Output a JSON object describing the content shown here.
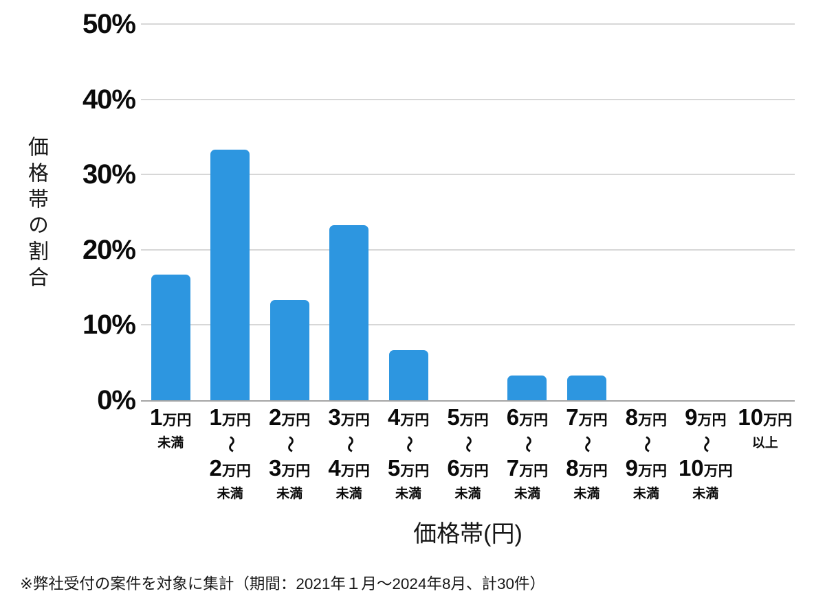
{
  "chart_data": {
    "type": "bar",
    "title": "",
    "xlabel": "価格帯(円)",
    "ylabel": "価格帯の割合",
    "ylim": [
      0,
      50
    ],
    "grid": true,
    "bar_color": "#2D96E0",
    "y_ticks": [
      "50%",
      "40%",
      "30%",
      "20%",
      "10%",
      "0%"
    ],
    "categories": [
      {
        "label": "1万円未満",
        "num1": "1",
        "unit1": "万円",
        "suffix": "未満",
        "value": 16.7
      },
      {
        "label": "1万円〜2万円未満",
        "num1": "1",
        "unit1": "万円",
        "tilde": "〜",
        "num2": "2",
        "unit2": "万円",
        "suffix": "未満",
        "value": 33.3
      },
      {
        "label": "2万円〜3万円未満",
        "num1": "2",
        "unit1": "万円",
        "tilde": "〜",
        "num2": "3",
        "unit2": "万円",
        "suffix": "未満",
        "value": 13.3
      },
      {
        "label": "3万円〜4万円未満",
        "num1": "3",
        "unit1": "万円",
        "tilde": "〜",
        "num2": "4",
        "unit2": "万円",
        "suffix": "未満",
        "value": 23.3
      },
      {
        "label": "4万円〜5万円未満",
        "num1": "4",
        "unit1": "万円",
        "tilde": "〜",
        "num2": "5",
        "unit2": "万円",
        "suffix": "未満",
        "value": 6.7
      },
      {
        "label": "5万円〜6万円未満",
        "num1": "5",
        "unit1": "万円",
        "tilde": "〜",
        "num2": "6",
        "unit2": "万円",
        "suffix": "未満",
        "value": 0
      },
      {
        "label": "6万円〜7万円未満",
        "num1": "6",
        "unit1": "万円",
        "tilde": "〜",
        "num2": "7",
        "unit2": "万円",
        "suffix": "未満",
        "value": 3.3
      },
      {
        "label": "7万円〜8万円未満",
        "num1": "7",
        "unit1": "万円",
        "tilde": "〜",
        "num2": "8",
        "unit2": "万円",
        "suffix": "未満",
        "value": 3.3
      },
      {
        "label": "8万円〜9万円未満",
        "num1": "8",
        "unit1": "万円",
        "tilde": "〜",
        "num2": "9",
        "unit2": "万円",
        "suffix": "未満",
        "value": 0
      },
      {
        "label": "9万円〜10万円未満",
        "num1": "9",
        "unit1": "万円",
        "tilde": "〜",
        "num2": "10",
        "unit2": "万円",
        "suffix": "未満",
        "value": 0
      },
      {
        "label": "10万円以上",
        "num1": "10",
        "unit1": "万円",
        "suffix": "以上",
        "value": 0
      }
    ]
  },
  "footnote": "※弊社受付の案件を対象に集計（期間：2021年１月～2024年8月、計30件）"
}
